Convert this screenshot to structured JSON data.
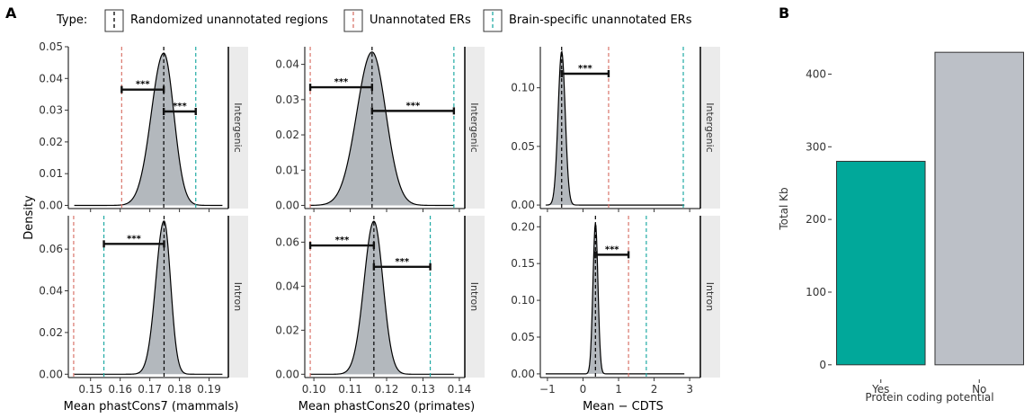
{
  "chart_data": [
    {
      "type": "area",
      "panel_label": "A",
      "ylabel": "Density",
      "legend": {
        "title": "Type:",
        "entries": [
          {
            "name": "Randomized unannotated regions",
            "color": "#000000"
          },
          {
            "name": "Unannotated ERs",
            "color": "#d9756b"
          },
          {
            "name": "Brain-specific unannotated ERs",
            "color": "#20aaa4"
          }
        ],
        "placement": "top"
      },
      "rows": [
        "Intergenic",
        "Intron"
      ],
      "columns": [
        {
          "xlabel": "Mean phastCons7 (mammals)",
          "xlim": [
            0.1425,
            0.1965
          ],
          "xticks": [
            0.15,
            0.16,
            0.17,
            0.18,
            0.19
          ],
          "xtick_labels": [
            "0.15",
            "0.16",
            "0.17",
            "0.18",
            "0.19"
          ]
        },
        {
          "xlabel": "Mean phastCons20 (primates)",
          "xlim": [
            0.0975,
            0.1415
          ],
          "xticks": [
            0.1,
            0.11,
            0.12,
            0.13,
            0.14
          ],
          "xtick_labels": [
            "0.10",
            "0.11",
            "0.12",
            "0.13",
            "0.14"
          ]
        },
        {
          "xlabel": "Mean − CDTS",
          "xlim": [
            -1.2,
            3.3
          ],
          "xticks": [
            -1,
            0,
            1,
            2,
            3
          ],
          "xtick_labels": [
            "−1",
            "0",
            "1",
            "2",
            "3"
          ]
        }
      ],
      "panels": [
        {
          "row": "Intergenic",
          "col": 0,
          "ylim": [
            -0.001,
            0.05
          ],
          "yticks": [
            0.0,
            0.01,
            0.02,
            0.03,
            0.04,
            0.05
          ],
          "ytick_labels": [
            "0.00",
            "0.01",
            "0.02",
            "0.03",
            "0.04",
            "0.05"
          ],
          "density": {
            "peak_x": 0.1747,
            "peak_y": 0.048,
            "sd_left": 0.0042,
            "sd_right": 0.0034,
            "range": [
              0.1445,
              0.1945
            ]
          },
          "vlines": {
            "random": 0.1747,
            "unannotated": 0.1605,
            "brain": 0.1855
          },
          "brackets": [
            {
              "x1": 0.1605,
              "x2": 0.1747,
              "y": 0.0365,
              "label": "***"
            },
            {
              "x1": 0.1747,
              "x2": 0.1855,
              "y": 0.0296,
              "label": "***"
            }
          ]
        },
        {
          "row": "Intergenic",
          "col": 1,
          "ylim": [
            -0.0009,
            0.045
          ],
          "yticks": [
            0.0,
            0.01,
            0.02,
            0.03,
            0.04
          ],
          "ytick_labels": [
            "0.00",
            "0.01",
            "0.02",
            "0.03",
            "0.04"
          ],
          "density": {
            "peak_x": 0.116,
            "peak_y": 0.0435,
            "sd_left": 0.0042,
            "sd_right": 0.0038,
            "range": [
              0.099,
              0.1385
            ]
          },
          "vlines": {
            "random": 0.116,
            "unannotated": 0.099,
            "brain": 0.1385
          },
          "brackets": [
            {
              "x1": 0.099,
              "x2": 0.116,
              "y": 0.0335,
              "label": "***"
            },
            {
              "x1": 0.116,
              "x2": 0.1385,
              "y": 0.0268,
              "label": "***"
            }
          ]
        },
        {
          "row": "Intergenic",
          "col": 2,
          "ylim": [
            -0.003,
            0.135
          ],
          "yticks": [
            0.0,
            0.05,
            0.1
          ],
          "ytick_labels": [
            "0.00",
            "0.05",
            "0.10"
          ],
          "density": {
            "peak_x": -0.6,
            "peak_y": 0.131,
            "sd_left": 0.1,
            "sd_right": 0.1,
            "range": [
              -1.05,
              2.85
            ]
          },
          "vlines": {
            "random": -0.6,
            "unannotated": 0.72,
            "brain": 2.82
          },
          "brackets": [
            {
              "x1": -0.6,
              "x2": 0.72,
              "y": 0.112,
              "label": "***"
            }
          ]
        },
        {
          "row": "Intron",
          "col": 0,
          "ylim": [
            -0.0016,
            0.076
          ],
          "yticks": [
            0.0,
            0.02,
            0.04,
            0.06
          ],
          "ytick_labels": [
            "0.00",
            "0.02",
            "0.04",
            "0.06"
          ],
          "density": {
            "peak_x": 0.1748,
            "peak_y": 0.0735,
            "sd_left": 0.0028,
            "sd_right": 0.0022,
            "range": [
              0.1445,
              0.1945
            ]
          },
          "vlines": {
            "random": 0.1748,
            "unannotated": 0.1443,
            "brain": 0.1545
          },
          "brackets": [
            {
              "x1": 0.1545,
              "x2": 0.1748,
              "y": 0.0625,
              "label": "***"
            }
          ]
        },
        {
          "row": "Intron",
          "col": 1,
          "ylim": [
            -0.0015,
            0.072
          ],
          "yticks": [
            0.0,
            0.02,
            0.04,
            0.06
          ],
          "ytick_labels": [
            "0.00",
            "0.02",
            "0.04",
            "0.06"
          ],
          "density": {
            "peak_x": 0.1165,
            "peak_y": 0.0695,
            "sd_left": 0.0027,
            "sd_right": 0.0025,
            "range": [
              0.099,
              0.1385
            ]
          },
          "vlines": {
            "random": 0.1165,
            "unannotated": 0.099,
            "brain": 0.132
          },
          "brackets": [
            {
              "x1": 0.099,
              "x2": 0.1165,
              "y": 0.0585,
              "label": "***"
            },
            {
              "x1": 0.1165,
              "x2": 0.132,
              "y": 0.0488,
              "label": "***"
            }
          ]
        },
        {
          "row": "Intron",
          "col": 2,
          "ylim": [
            -0.005,
            0.215
          ],
          "yticks": [
            0.0,
            0.05,
            0.1,
            0.15,
            0.2
          ],
          "ytick_labels": [
            "0.00",
            "0.05",
            "0.10",
            "0.15",
            "0.20"
          ],
          "density": {
            "peak_x": 0.35,
            "peak_y": 0.205,
            "sd_left": 0.07,
            "sd_right": 0.07,
            "range": [
              -1.05,
              2.85
            ]
          },
          "vlines": {
            "random": 0.35,
            "unannotated": 1.28,
            "brain": 1.78
          },
          "brackets": [
            {
              "x1": 0.35,
              "x2": 1.28,
              "y": 0.162,
              "label": "***"
            }
          ]
        }
      ]
    },
    {
      "type": "bar",
      "panel_label": "B",
      "categories": [
        "Yes",
        "No"
      ],
      "values": [
        280,
        430
      ],
      "colors": [
        "#01a89a",
        "#bcc0c7"
      ],
      "xlabel": "Protein coding potential",
      "ylabel": "Total Kb",
      "ylim": [
        -20,
        450
      ],
      "yticks": [
        0,
        100,
        200,
        300,
        400
      ],
      "ytick_labels": [
        "0",
        "100",
        "200",
        "300",
        "400"
      ]
    }
  ],
  "colors": {
    "density_fill": "#b3b8bd",
    "strip_fill": "#ebebeb",
    "random": "#000000",
    "unannotated": "#d9756b",
    "brain": "#20aaa4"
  }
}
